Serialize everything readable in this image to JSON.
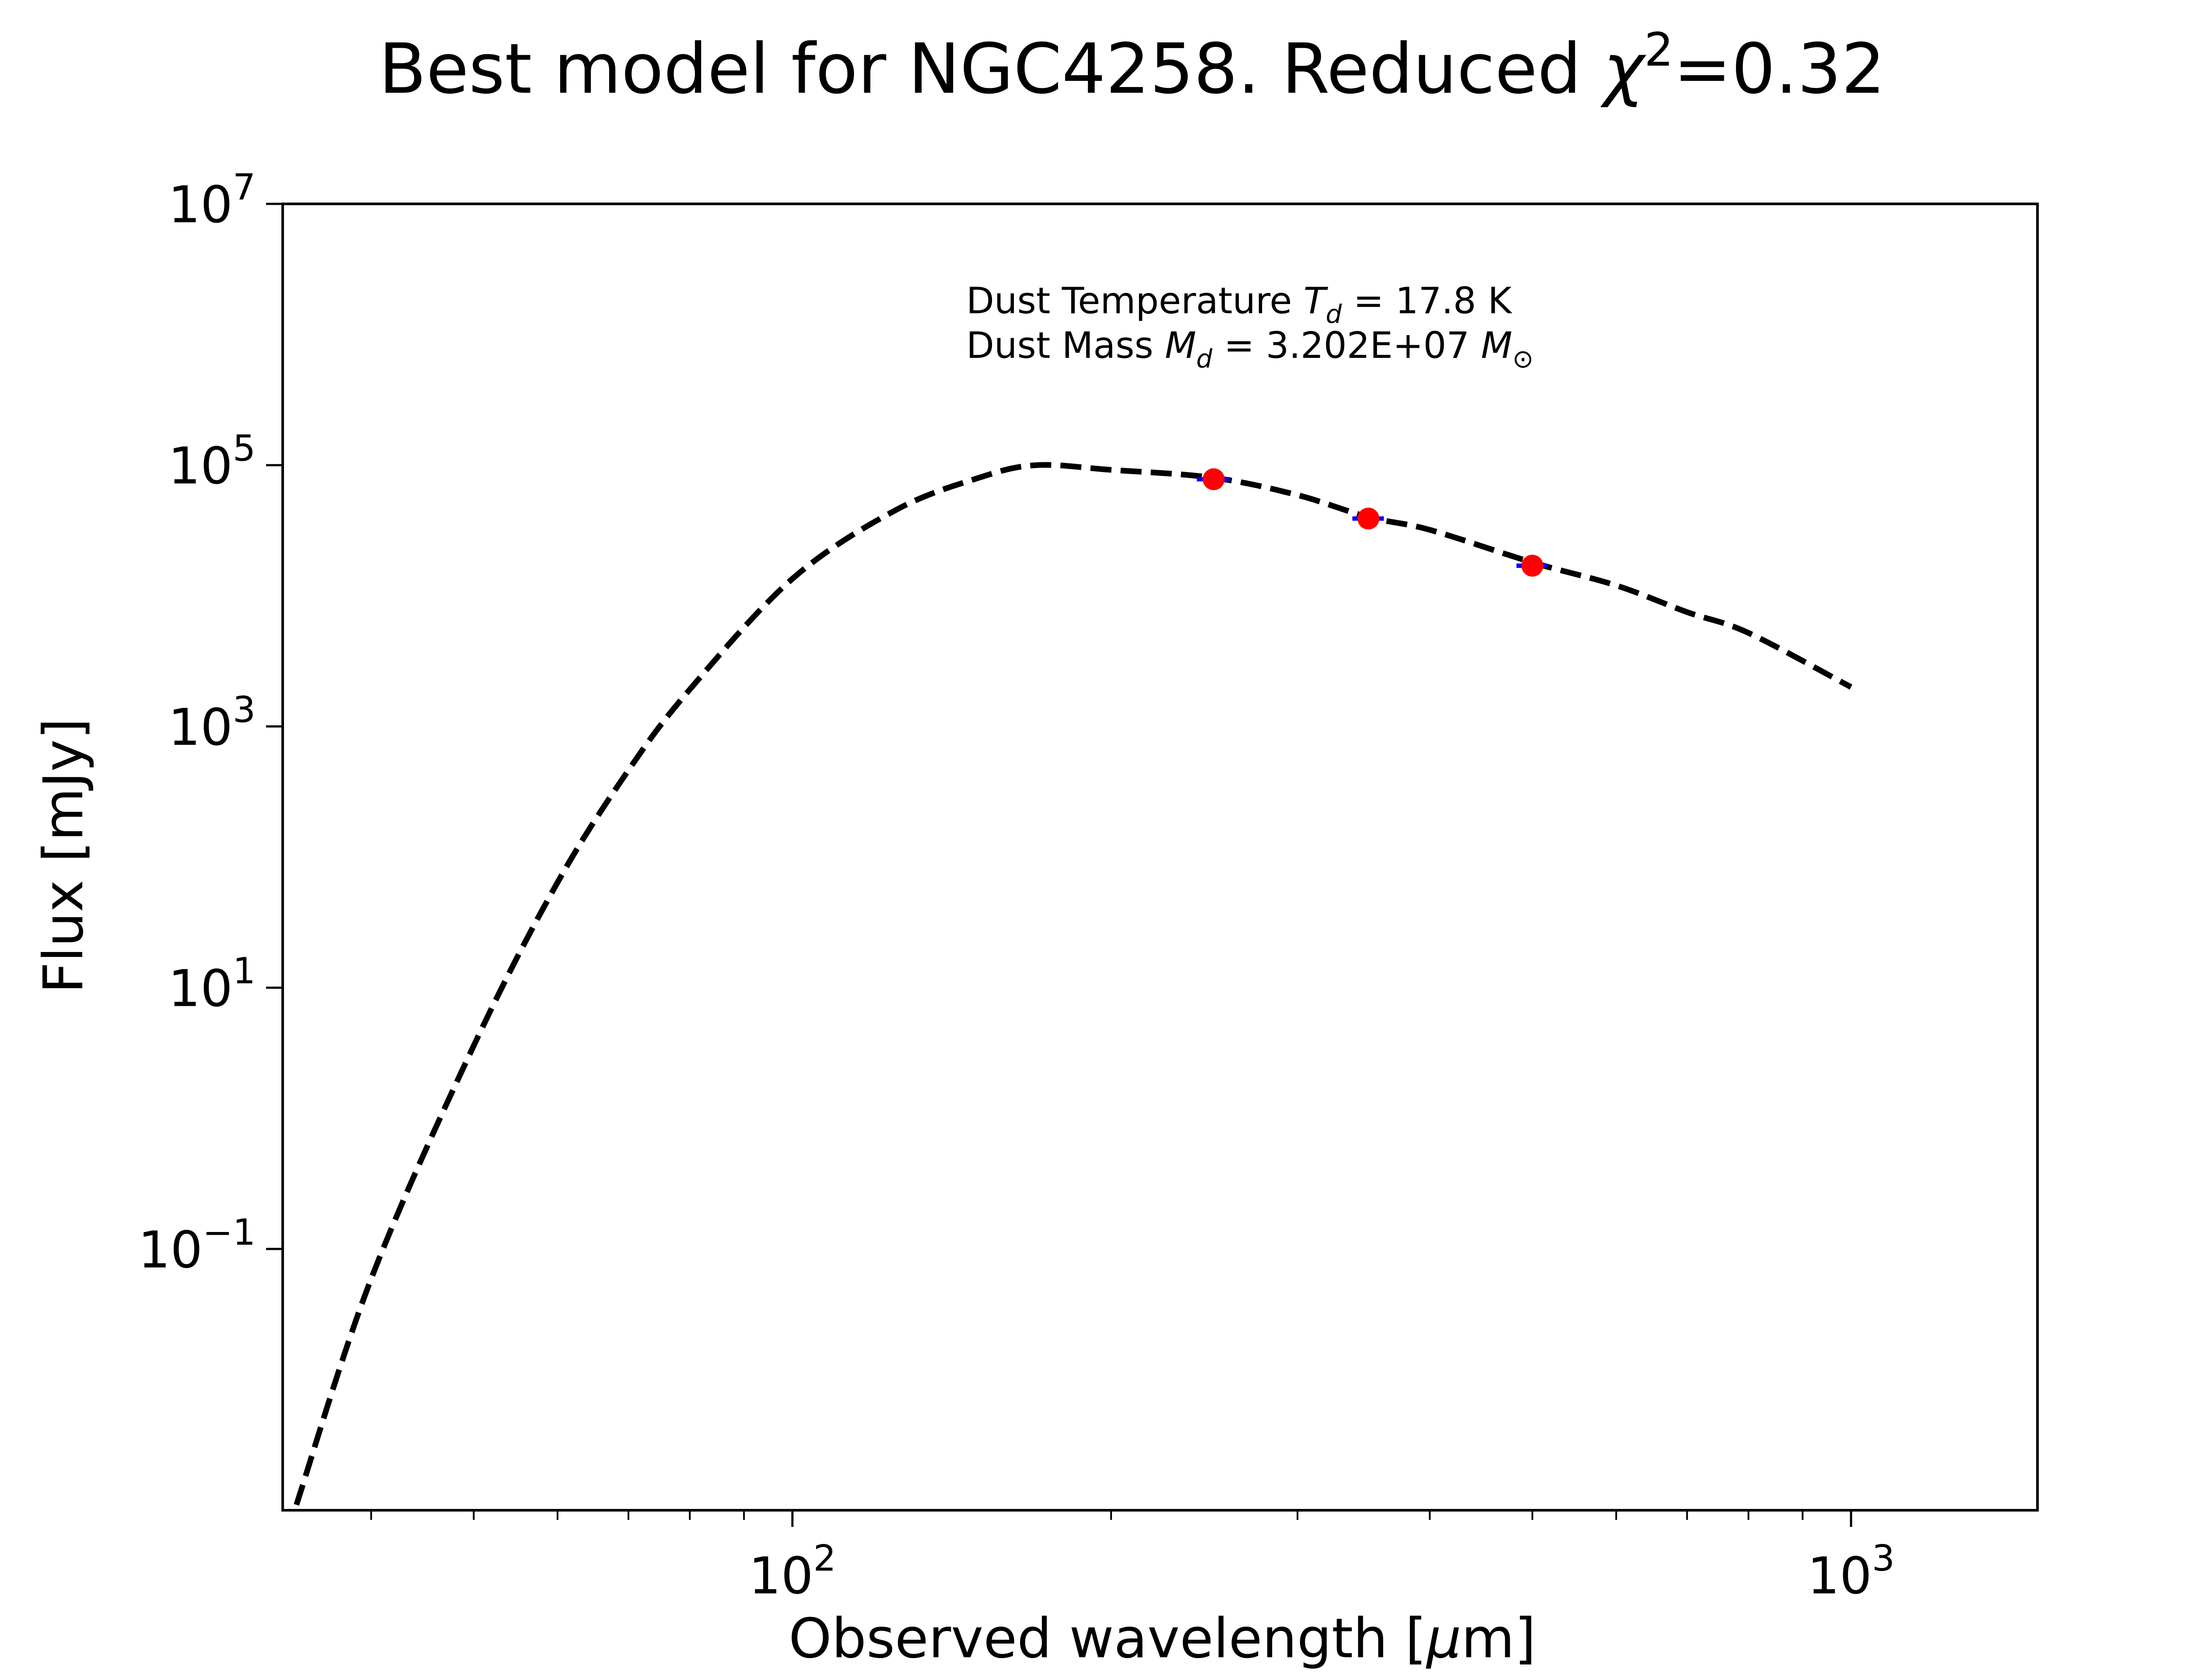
{
  "chart_data": {
    "type": "scatter",
    "title": {
      "prefix": "Best model for NGC4258. Reduced ",
      "chi_symbol": "χ",
      "chi_power": "2",
      "chi_value": "=0.32"
    },
    "xlabel": {
      "prefix": "Observed wavelength [",
      "mu": "μ",
      "suffix": "m]"
    },
    "ylabel": "Flux [mJy]",
    "x_scale": "log",
    "y_scale": "log",
    "xlim": [
      33,
      1500
    ],
    "ylim": [
      0.001,
      10000000
    ],
    "x_ticks": [
      {
        "value": 100,
        "base": "10",
        "exp": "2"
      },
      {
        "value": 1000,
        "base": "10",
        "exp": "3"
      }
    ],
    "y_ticks": [
      {
        "value": 0.1,
        "base": "10",
        "exp": "−1"
      },
      {
        "value": 10,
        "base": "10",
        "exp": "1"
      },
      {
        "value": 1000,
        "base": "10",
        "exp": "3"
      },
      {
        "value": 100000,
        "base": "10",
        "exp": "5"
      },
      {
        "value": 10000000,
        "base": "10",
        "exp": "7"
      }
    ],
    "x_minor_ticks": [
      40,
      50,
      60,
      70,
      80,
      90,
      200,
      300,
      400,
      500,
      600,
      700,
      800,
      900
    ],
    "grid": false,
    "annotations": [
      {
        "pre": "Dust Temperature ",
        "sym": "T",
        "sub": "d",
        "post": " = 17.8 K"
      },
      {
        "pre": "Dust Mass ",
        "sym": "M",
        "sub": "d",
        "post": " = 3.202E+07 ",
        "sym2": "M",
        "sub2": "⊙"
      }
    ],
    "series": [
      {
        "kind": "model",
        "style": "dashed",
        "color": "#000000",
        "x": [
          34,
          40,
          50,
          60,
          70,
          80,
          100,
          125,
          150,
          170,
          200,
          250,
          300,
          350,
          400,
          500,
          600,
          700,
          800,
          1000
        ],
        "y": [
          0.0011,
          0.059,
          3.6,
          64,
          462,
          1920,
          13500,
          45000,
          80000,
          100000,
          92000,
          80000,
          59000,
          40000,
          32000,
          18000,
          12000,
          7500,
          5200,
          2000
        ]
      },
      {
        "kind": "observed",
        "color": "#ff0000",
        "error_color": "#0000ff",
        "points": [
          {
            "x": 250,
            "y": 78000,
            "x_err": 9
          },
          {
            "x": 350,
            "y": 39000,
            "x_err": 12
          },
          {
            "x": 500,
            "y": 17000,
            "x_err": 17
          }
        ]
      }
    ]
  }
}
